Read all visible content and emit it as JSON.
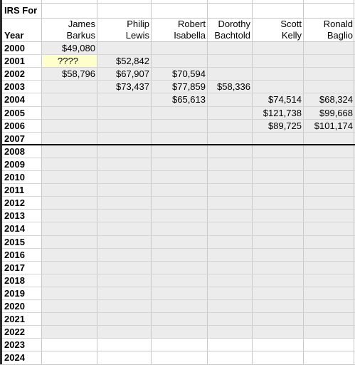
{
  "sheet": {
    "title_cell": "IRS For",
    "year_header": "Year",
    "columns": [
      {
        "first": "James",
        "last": "Barkus"
      },
      {
        "first": "Philip",
        "last": "Lewis"
      },
      {
        "first": "Robert",
        "last": "Isabella"
      },
      {
        "first": "Dorothy",
        "last": "Bachtold"
      },
      {
        "first": "Scott",
        "last": "Kelly"
      },
      {
        "first": "Ronald",
        "last": "Baglio"
      }
    ],
    "years": [
      "2000",
      "2001",
      "2002",
      "2003",
      "2004",
      "2005",
      "2006",
      "2007",
      "2008",
      "2009",
      "2010",
      "2011",
      "2012",
      "2013",
      "2014",
      "2015",
      "2016",
      "2017",
      "2018",
      "2019",
      "2020",
      "2021",
      "2022",
      "2023",
      "2024"
    ],
    "values": [
      [
        "$49,080",
        "",
        "",
        "",
        "",
        ""
      ],
      [
        "????",
        "$52,842",
        "",
        "",
        "",
        ""
      ],
      [
        "$58,796",
        "$67,907",
        "$70,594",
        "",
        "",
        ""
      ],
      [
        "",
        "$73,437",
        "$77,859",
        "$58,336",
        "",
        ""
      ],
      [
        "",
        "",
        "$65,613",
        "",
        "$74,514",
        "$68,324"
      ],
      [
        "",
        "",
        "",
        "",
        "$121,738",
        "$99,668"
      ],
      [
        "",
        "",
        "",
        "",
        "$89,725",
        "$101,174"
      ]
    ],
    "highlighted_cell": {
      "row": 1,
      "col": 0,
      "color": "#ffffcc"
    },
    "shade_color": "#ececec"
  }
}
